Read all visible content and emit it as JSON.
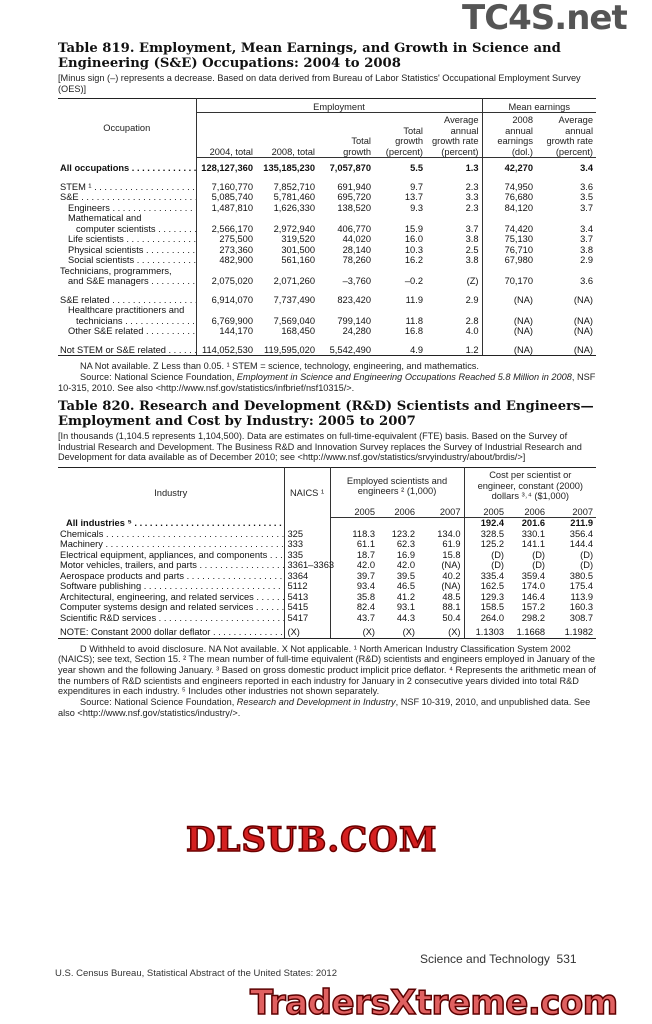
{
  "table819": {
    "title_line1": "Table 819. Employment, Mean Earnings, and Growth in Science and",
    "title_line2": "Engineering (S&E) Occupations: 2004 to 2008",
    "headnote": "[Minus sign (–) represents a decrease. Based on data derived from Bureau of Labor Statistics' Occupational Employment Survey (OES)]",
    "headers": {
      "occupation": "Occupation",
      "employment": "Employment",
      "mean_earnings": "Mean earnings",
      "columns": [
        "2004, total",
        "2008, total",
        "Total growth",
        "Total growth (percent)",
        "Average annual growth rate (percent)",
        "2008 annual earnings (dol.)",
        "Average annual growth rate (percent)"
      ]
    },
    "rows": [
      {
        "label": "All occupations",
        "level": 0,
        "bold": true,
        "values": [
          "128,127,360",
          "135,185,230",
          "7,057,870",
          "5.5",
          "1.3",
          "42,270",
          "3.4"
        ]
      },
      {
        "gap": true
      },
      {
        "label": "STEM ¹",
        "level": 0,
        "values": [
          "7,160,770",
          "7,852,710",
          "691,940",
          "9.7",
          "2.3",
          "74,950",
          "3.6"
        ]
      },
      {
        "label": "S&E",
        "level": 0,
        "values": [
          "5,085,740",
          "5,781,460",
          "695,720",
          "13.7",
          "3.3",
          "76,680",
          "3.5"
        ]
      },
      {
        "label": "Engineers",
        "level": 1,
        "values": [
          "1,487,810",
          "1,626,330",
          "138,520",
          "9.3",
          "2.3",
          "84,120",
          "3.7"
        ]
      },
      {
        "label": "Mathematical and",
        "level": 1,
        "nodots": true,
        "values": []
      },
      {
        "label": "computer scientists",
        "level": 2,
        "values": [
          "2,566,170",
          "2,972,940",
          "406,770",
          "15.9",
          "3.7",
          "74,420",
          "3.4"
        ]
      },
      {
        "label": "Life scientists",
        "level": 1,
        "values": [
          "275,500",
          "319,520",
          "44,020",
          "16.0",
          "3.8",
          "75,130",
          "3.7"
        ]
      },
      {
        "label": "Physical scientists",
        "level": 1,
        "values": [
          "273,360",
          "301,500",
          "28,140",
          "10.3",
          "2.5",
          "76,710",
          "3.8"
        ]
      },
      {
        "label": "Social scientists",
        "level": 1,
        "values": [
          "482,900",
          "561,160",
          "78,260",
          "16.2",
          "3.8",
          "67,980",
          "2.9"
        ]
      },
      {
        "label": "Technicians, programmers,",
        "level": 0,
        "nodots": true,
        "values": []
      },
      {
        "label": "and S&E managers",
        "level": 1,
        "values": [
          "2,075,020",
          "2,071,260",
          "–3,760",
          "–0.2",
          "(Z)",
          "70,170",
          "3.6"
        ]
      },
      {
        "gap": true
      },
      {
        "label": "S&E related",
        "level": 0,
        "values": [
          "6,914,070",
          "7,737,490",
          "823,420",
          "11.9",
          "2.9",
          "(NA)",
          "(NA)"
        ]
      },
      {
        "label": "Healthcare practitioners and",
        "level": 1,
        "nodots": true,
        "values": []
      },
      {
        "label": "technicians",
        "level": 2,
        "values": [
          "6,769,900",
          "7,569,040",
          "799,140",
          "11.8",
          "2.8",
          "(NA)",
          "(NA)"
        ]
      },
      {
        "label": "Other S&E related",
        "level": 1,
        "values": [
          "144,170",
          "168,450",
          "24,280",
          "16.8",
          "4.0",
          "(NA)",
          "(NA)"
        ]
      },
      {
        "gap": true
      },
      {
        "label": "Not STEM or S&E related",
        "level": 0,
        "values": [
          "114,052,530",
          "119,595,020",
          "5,542,490",
          "4.9",
          "1.2",
          "(NA)",
          "(NA)"
        ]
      }
    ],
    "footnote": "NA Not available. Z Less than 0.05. ¹ STEM = science, technology, engineering, and mathematics.",
    "source_prefix": "Source: National Science Foundation, ",
    "source_title": "Employment in Science and Engineering Occupations Reached 5.8 Million in 2008",
    "source_suffix": ", NSF 10-315, 2010. See also <http://www.nsf.gov/statistics/infbrief/nsf10315/>."
  },
  "table820": {
    "title_line1": "Table 820. Research and Development (R&D) Scientists and Engineers—",
    "title_line2": "Employment and Cost by Industry: 2005 to 2007",
    "headnote": "[In thousands (1,104.5 represents 1,104,500). Data are estimates on full-time-equivalent (FTE) basis. Based on the Survey of Industrial Research and Development. The Business R&D and Innovation Survey replaces the Survey of Industrial Research and Development for data available as of December 2010; see <http://www.nsf.gov/statistics/srvyindustry/about/brdis/>]",
    "headers": {
      "industry": "Industry",
      "naics": "NAICS ¹",
      "employed": "Employed scientists and engineers ² (1,000)",
      "cost": "Cost per scientist or engineer, constant (2000) dollars ³˒⁴ ($1,000)",
      "employed_years": [
        "2005",
        "2006",
        "2007"
      ],
      "cost_years": [
        "2005",
        "2006",
        "2007"
      ]
    },
    "rows": [
      {
        "label": "All industries ⁵",
        "bold": true,
        "naics": "",
        "values": [
          "",
          "",
          "",
          "192.4",
          "201.6",
          "211.9"
        ]
      },
      {
        "label": "Chemicals",
        "naics": "325",
        "values": [
          "118.3",
          "123.2",
          "134.0",
          "328.5",
          "330.1",
          "356.4"
        ]
      },
      {
        "label": "Machinery",
        "naics": "333",
        "values": [
          "61.1",
          "62.3",
          "61.9",
          "125.2",
          "141.1",
          "144.4"
        ]
      },
      {
        "label": "Electrical equipment, appliances, and components",
        "naics": "335",
        "values": [
          "18.7",
          "16.9",
          "15.8",
          "(D)",
          "(D)",
          "(D)"
        ]
      },
      {
        "label": "Motor vehicles, trailers, and parts",
        "naics": "3361–3363",
        "values": [
          "42.0",
          "42.0",
          "(NA)",
          "(D)",
          "(D)",
          "(D)"
        ]
      },
      {
        "label": "Aerospace products and parts",
        "naics": "3364",
        "values": [
          "39.7",
          "39.5",
          "40.2",
          "335.4",
          "359.4",
          "380.5"
        ]
      },
      {
        "label": "Software publishing",
        "naics": "5112",
        "values": [
          "93.4",
          "46.5",
          "(NA)",
          "162.5",
          "174.0",
          "175.4"
        ]
      },
      {
        "label": "Architectural, engineering, and related services",
        "naics": "5413",
        "values": [
          "35.8",
          "41.2",
          "48.5",
          "129.3",
          "146.4",
          "113.9"
        ]
      },
      {
        "label": "Computer systems design and related services",
        "naics": "5415",
        "values": [
          "82.4",
          "93.1",
          "88.1",
          "158.5",
          "157.2",
          "160.3"
        ]
      },
      {
        "label": "Scientific R&D services",
        "naics": "5417",
        "values": [
          "43.7",
          "44.3",
          "50.4",
          "264.0",
          "298.2",
          "308.7"
        ]
      },
      {
        "gap": true
      },
      {
        "label": "NOTE: Constant 2000 dollar deflator",
        "naics": "(X)",
        "values": [
          "(X)",
          "(X)",
          "(X)",
          "1.1303",
          "1.1668",
          "1.1982"
        ]
      }
    ],
    "footnote": "D Withheld to avoid disclosure. NA Not available. X Not applicable. ¹ North American Industry Classification System 2002 (NAICS); see text, Section 15. ² The mean number of full-time equivalent (R&D) scientists and engineers employed in January of the year shown and the following January. ³ Based on gross domestic product implicit price deflator. ⁴ Represents the arithmetic mean of the numbers of R&D scientists and engineers reported in each industry for January in 2 consecutive years divided into total R&D expenditures in each industry. ⁵ Includes other industries not shown separately.",
    "source_prefix": "Source: National Science Foundation, ",
    "source_title": "Research and Development in Industry",
    "source_suffix": ", NSF 10-319, 2010, and unpublished data. See also <http://www.nsf.gov/statistics/industry/>."
  },
  "page_footer": {
    "section": "Science and Technology",
    "page_number": "531",
    "publication": "U.S. Census Bureau, Statistical Abstract of the United States: 2012"
  },
  "watermarks": {
    "top": "TC4S.net",
    "middle": "DLSUB.COM",
    "bottom": "TradersXtreme.com"
  }
}
